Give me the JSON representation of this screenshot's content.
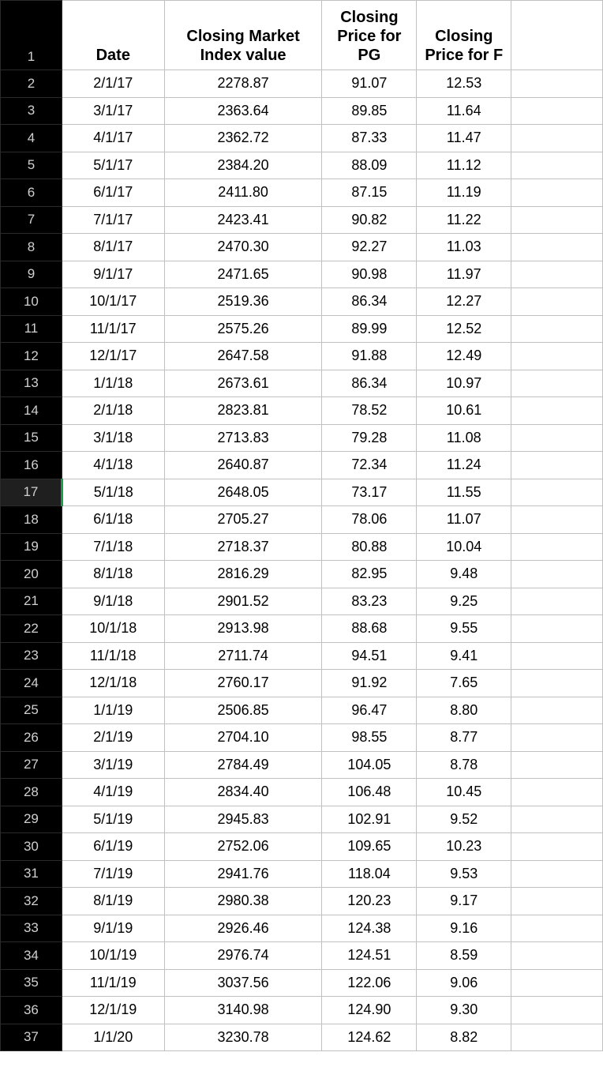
{
  "sheet": {
    "columns": {
      "rownum_width": 78,
      "date_width": 130,
      "index_width": 200,
      "pg_width": 120,
      "f_width": 120,
      "blank_width": 116
    },
    "colors": {
      "rownum_bg": "#000000",
      "rownum_fg": "#d0d0d0",
      "cell_border": "#c0c0c0",
      "selected_accent": "#1a9e4b",
      "text": "#000000",
      "background": "#ffffff"
    },
    "typography": {
      "cell_fontsize": 18,
      "header_fontsize": 20,
      "rownum_fontsize": 17,
      "header_weight": "700"
    },
    "selected_row": 17,
    "headers": {
      "date": "Date",
      "index": "Closing Market Index value",
      "pg": "Closing Price for PG",
      "f": "Closing Price for F"
    },
    "rows": [
      {
        "n": 1,
        "date": "",
        "index": "",
        "pg": "",
        "f": ""
      },
      {
        "n": 2,
        "date": "2/1/17",
        "index": "2278.87",
        "pg": "91.07",
        "f": "12.53"
      },
      {
        "n": 3,
        "date": "3/1/17",
        "index": "2363.64",
        "pg": "89.85",
        "f": "11.64"
      },
      {
        "n": 4,
        "date": "4/1/17",
        "index": "2362.72",
        "pg": "87.33",
        "f": "11.47"
      },
      {
        "n": 5,
        "date": "5/1/17",
        "index": "2384.20",
        "pg": "88.09",
        "f": "11.12"
      },
      {
        "n": 6,
        "date": "6/1/17",
        "index": "2411.80",
        "pg": "87.15",
        "f": "11.19"
      },
      {
        "n": 7,
        "date": "7/1/17",
        "index": "2423.41",
        "pg": "90.82",
        "f": "11.22"
      },
      {
        "n": 8,
        "date": "8/1/17",
        "index": "2470.30",
        "pg": "92.27",
        "f": "11.03"
      },
      {
        "n": 9,
        "date": "9/1/17",
        "index": "2471.65",
        "pg": "90.98",
        "f": "11.97"
      },
      {
        "n": 10,
        "date": "10/1/17",
        "index": "2519.36",
        "pg": "86.34",
        "f": "12.27"
      },
      {
        "n": 11,
        "date": "11/1/17",
        "index": "2575.26",
        "pg": "89.99",
        "f": "12.52"
      },
      {
        "n": 12,
        "date": "12/1/17",
        "index": "2647.58",
        "pg": "91.88",
        "f": "12.49"
      },
      {
        "n": 13,
        "date": "1/1/18",
        "index": "2673.61",
        "pg": "86.34",
        "f": "10.97"
      },
      {
        "n": 14,
        "date": "2/1/18",
        "index": "2823.81",
        "pg": "78.52",
        "f": "10.61"
      },
      {
        "n": 15,
        "date": "3/1/18",
        "index": "2713.83",
        "pg": "79.28",
        "f": "11.08"
      },
      {
        "n": 16,
        "date": "4/1/18",
        "index": "2640.87",
        "pg": "72.34",
        "f": "11.24"
      },
      {
        "n": 17,
        "date": "5/1/18",
        "index": "2648.05",
        "pg": "73.17",
        "f": "11.55"
      },
      {
        "n": 18,
        "date": "6/1/18",
        "index": "2705.27",
        "pg": "78.06",
        "f": "11.07"
      },
      {
        "n": 19,
        "date": "7/1/18",
        "index": "2718.37",
        "pg": "80.88",
        "f": "10.04"
      },
      {
        "n": 20,
        "date": "8/1/18",
        "index": "2816.29",
        "pg": "82.95",
        "f": "9.48"
      },
      {
        "n": 21,
        "date": "9/1/18",
        "index": "2901.52",
        "pg": "83.23",
        "f": "9.25"
      },
      {
        "n": 22,
        "date": "10/1/18",
        "index": "2913.98",
        "pg": "88.68",
        "f": "9.55"
      },
      {
        "n": 23,
        "date": "11/1/18",
        "index": "2711.74",
        "pg": "94.51",
        "f": "9.41"
      },
      {
        "n": 24,
        "date": "12/1/18",
        "index": "2760.17",
        "pg": "91.92",
        "f": "7.65"
      },
      {
        "n": 25,
        "date": "1/1/19",
        "index": "2506.85",
        "pg": "96.47",
        "f": "8.80"
      },
      {
        "n": 26,
        "date": "2/1/19",
        "index": "2704.10",
        "pg": "98.55",
        "f": "8.77"
      },
      {
        "n": 27,
        "date": "3/1/19",
        "index": "2784.49",
        "pg": "104.05",
        "f": "8.78"
      },
      {
        "n": 28,
        "date": "4/1/19",
        "index": "2834.40",
        "pg": "106.48",
        "f": "10.45"
      },
      {
        "n": 29,
        "date": "5/1/19",
        "index": "2945.83",
        "pg": "102.91",
        "f": "9.52"
      },
      {
        "n": 30,
        "date": "6/1/19",
        "index": "2752.06",
        "pg": "109.65",
        "f": "10.23"
      },
      {
        "n": 31,
        "date": "7/1/19",
        "index": "2941.76",
        "pg": "118.04",
        "f": "9.53"
      },
      {
        "n": 32,
        "date": "8/1/19",
        "index": "2980.38",
        "pg": "120.23",
        "f": "9.17"
      },
      {
        "n": 33,
        "date": "9/1/19",
        "index": "2926.46",
        "pg": "124.38",
        "f": "9.16"
      },
      {
        "n": 34,
        "date": "10/1/19",
        "index": "2976.74",
        "pg": "124.51",
        "f": "8.59"
      },
      {
        "n": 35,
        "date": "11/1/19",
        "index": "3037.56",
        "pg": "122.06",
        "f": "9.06"
      },
      {
        "n": 36,
        "date": "12/1/19",
        "index": "3140.98",
        "pg": "124.90",
        "f": "9.30"
      },
      {
        "n": 37,
        "date": "1/1/20",
        "index": "3230.78",
        "pg": "124.62",
        "f": "8.82"
      }
    ]
  }
}
